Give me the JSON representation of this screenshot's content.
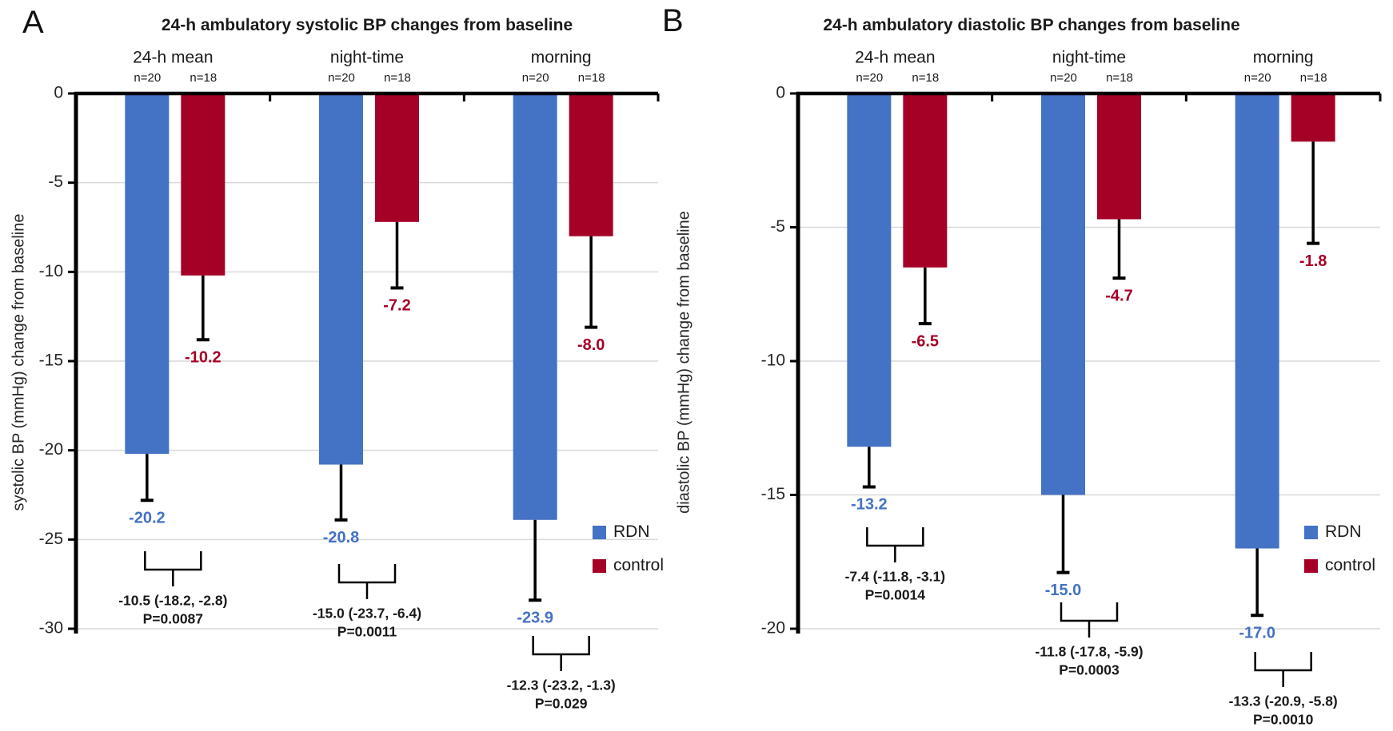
{
  "figure": {
    "background": "#ffffff"
  },
  "colors": {
    "rdn": "#4472C4",
    "control": "#A50026",
    "grid": "#D9D9D9",
    "axis": "#000000",
    "tick_text": "#262626",
    "annotation_text": "#1a1a1a"
  },
  "legend": {
    "rdn_label": "RDN",
    "control_label": "control"
  },
  "chart_data": [
    {
      "type": "bar",
      "panel_letter": "A",
      "title": "24-h ambulatory systolic BP changes from baseline",
      "ylabel": "systolic BP (mmHg) change from baseline",
      "ylim": [
        0,
        -30
      ],
      "grid": true,
      "ytick_values": [
        0,
        -5,
        -10,
        -15,
        -20,
        -25,
        -30
      ],
      "ytick_labels": [
        "0",
        "-5",
        "-10",
        "-15",
        "-20",
        "-25",
        "-30"
      ],
      "categories": [
        "24-h mean",
        "night-time",
        "morning"
      ],
      "n_labels": [
        [
          "n=20",
          "n=18"
        ],
        [
          "n=20",
          "n=18"
        ],
        [
          "n=20",
          "n=18"
        ]
      ],
      "series": [
        {
          "name": "RDN",
          "values": [
            -20.2,
            -20.8,
            -23.9
          ],
          "err_lo": [
            -22.8,
            -23.9,
            -28.4
          ],
          "value_labels": [
            "-20.2",
            "-20.8",
            "-23.9"
          ]
        },
        {
          "name": "control",
          "values": [
            -10.2,
            -7.2,
            -8.0
          ],
          "err_lo": [
            -13.8,
            -10.9,
            -13.1
          ],
          "value_labels": [
            "-10.2",
            "-7.2",
            "-8.0"
          ]
        }
      ],
      "annotations": [
        {
          "line1": "-10.5 (-18.2, -2.8)",
          "line2": "P=0.0087"
        },
        {
          "line1": "-15.0 (-23.7, -6.4)",
          "line2": "P=0.0011"
        },
        {
          "line1": "-12.3 (-23.2, -1.3)",
          "line2": "P=0.029"
        }
      ],
      "legend_position": "right-lower"
    },
    {
      "type": "bar",
      "panel_letter": "B",
      "title": "24-h ambulatory diastolic BP changes from baseline",
      "ylabel": "diastolic BP (mmHg) change from baseline",
      "ylim": [
        0,
        -20
      ],
      "grid": true,
      "ytick_values": [
        0,
        -5,
        -10,
        -15,
        -20
      ],
      "ytick_labels": [
        "0",
        "-5",
        "-10",
        "-15",
        "-20"
      ],
      "categories": [
        "24-h mean",
        "night-time",
        "morning"
      ],
      "n_labels": [
        [
          "n=20",
          "n=18"
        ],
        [
          "n=20",
          "n=18"
        ],
        [
          "n=20",
          "n=18"
        ]
      ],
      "series": [
        {
          "name": "RDN",
          "values": [
            -13.2,
            -15.0,
            -17.0
          ],
          "err_lo": [
            -14.7,
            -17.9,
            -19.5
          ],
          "value_labels": [
            "-13.2",
            "-15.0",
            "-17.0"
          ]
        },
        {
          "name": "control",
          "values": [
            -6.5,
            -4.7,
            -1.8
          ],
          "err_lo": [
            -8.6,
            -6.9,
            -5.6
          ],
          "value_labels": [
            "-6.5",
            "-4.7",
            "-1.8"
          ]
        }
      ],
      "annotations": [
        {
          "line1": "-7.4 (-11.8, -3.1)",
          "line2": "P=0.0014"
        },
        {
          "line1": "-11.8 (-17.8, -5.9)",
          "line2": "P=0.0003"
        },
        {
          "line1": "-13.3 (-20.9, -5.8)",
          "line2": "P=0.0010"
        }
      ],
      "legend_position": "right-lower"
    }
  ]
}
